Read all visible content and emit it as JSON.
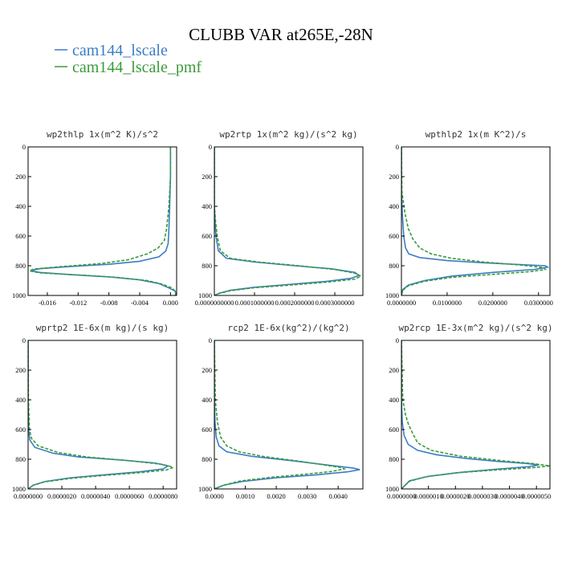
{
  "figure": {
    "title": "CLUBB VAR at265E,-28N",
    "legend": [
      {
        "label": "cam144_lscale",
        "color": "#3b7dc4",
        "dash": "solid"
      },
      {
        "label": "cam144_lscale_pmf",
        "color": "#3a9a3a",
        "dash": "dashed"
      }
    ]
  },
  "chart_data": [
    {
      "type": "line",
      "title": "wp2thlp  1x(m^2 K)/s^2",
      "xlim": [
        -0.0185,
        0.0008
      ],
      "ylim": [
        0,
        1000
      ],
      "y_inverted": true,
      "xticks": [
        -0.016,
        -0.012,
        -0.008,
        -0.004,
        0.0
      ],
      "xtick_labels": [
        "-0.016",
        "-0.012",
        "-0.008",
        "-0.004",
        "0.000"
      ],
      "yticks": [
        0,
        200,
        400,
        600,
        800,
        1000
      ],
      "series": [
        {
          "name": "cam144_lscale",
          "points": [
            [
              0.0,
              0
            ],
            [
              0.0,
              200
            ],
            [
              -0.0001,
              400
            ],
            [
              -0.0002,
              550
            ],
            [
              -0.0003,
              650
            ],
            [
              -0.0006,
              700
            ],
            [
              -0.0015,
              740
            ],
            [
              -0.004,
              770
            ],
            [
              -0.008,
              790
            ],
            [
              -0.013,
              805
            ],
            [
              -0.017,
              820
            ],
            [
              -0.0182,
              832
            ],
            [
              -0.017,
              845
            ],
            [
              -0.013,
              860
            ],
            [
              -0.008,
              875
            ],
            [
              -0.004,
              895
            ],
            [
              -0.0015,
              920
            ],
            [
              -0.0004,
              945
            ],
            [
              0.0006,
              970
            ],
            [
              0.0007,
              990
            ],
            [
              0.0006,
              1000
            ]
          ]
        },
        {
          "name": "cam144_lscale_pmf",
          "points": [
            [
              0.0,
              0
            ],
            [
              0.0,
              200
            ],
            [
              -0.0002,
              400
            ],
            [
              -0.0005,
              550
            ],
            [
              -0.0008,
              630
            ],
            [
              -0.0016,
              680
            ],
            [
              -0.003,
              720
            ],
            [
              -0.0055,
              760
            ],
            [
              -0.009,
              785
            ],
            [
              -0.014,
              805
            ],
            [
              -0.0178,
              822
            ],
            [
              -0.0183,
              835
            ],
            [
              -0.017,
              848
            ],
            [
              -0.012,
              862
            ],
            [
              -0.007,
              878
            ],
            [
              -0.003,
              900
            ],
            [
              -0.001,
              925
            ],
            [
              0.0002,
              950
            ],
            [
              0.0007,
              975
            ],
            [
              0.0007,
              995
            ],
            [
              0.0006,
              1000
            ]
          ]
        }
      ]
    },
    {
      "type": "line",
      "title": "wp2rtp  1x(m^2 kg)/(s^2 kg)",
      "xlim": [
        0.0,
        0.00037
      ],
      "ylim": [
        0,
        1000
      ],
      "y_inverted": true,
      "xticks": [
        0.0,
        0.0001,
        0.0002,
        0.0003
      ],
      "xtick_labels": [
        "0.0000000000",
        "0.0001000000",
        "0.0002000000",
        "0.0003000000"
      ],
      "yticks": [
        0,
        200,
        400,
        600,
        800,
        1000
      ],
      "series": [
        {
          "name": "cam144_lscale",
          "points": [
            [
              0.0,
              0
            ],
            [
              0.0,
              400
            ],
            [
              1.5e-06,
              500
            ],
            [
              4e-06,
              600
            ],
            [
              1e-05,
              700
            ],
            [
              3e-05,
              750
            ],
            [
              0.0001,
              775
            ],
            [
              0.0002,
              800
            ],
            [
              0.00029,
              820
            ],
            [
              0.00035,
              845
            ],
            [
              0.00036,
              865
            ],
            [
              0.00034,
              885
            ],
            [
              0.00028,
              905
            ],
            [
              0.00019,
              925
            ],
            [
              0.0001,
              945
            ],
            [
              4e-05,
              965
            ],
            [
              1.2e-05,
              985
            ],
            [
              0.0,
              1000
            ]
          ]
        },
        {
          "name": "cam144_lscale_pmf",
          "points": [
            [
              0.0,
              0
            ],
            [
              0.0,
              400
            ],
            [
              3e-06,
              500
            ],
            [
              7e-06,
              600
            ],
            [
              1.5e-05,
              700
            ],
            [
              4e-05,
              750
            ],
            [
              0.00011,
              775
            ],
            [
              0.00021,
              800
            ],
            [
              0.0003,
              825
            ],
            [
              0.00035,
              850
            ],
            [
              0.000365,
              870
            ],
            [
              0.00035,
              890
            ],
            [
              0.00029,
              908
            ],
            [
              0.0002,
              928
            ],
            [
              0.0001,
              948
            ],
            [
              4e-05,
              968
            ],
            [
              1e-05,
              988
            ],
            [
              0.0,
              1000
            ]
          ]
        }
      ]
    },
    {
      "type": "line",
      "title": "wpthlp2  1x(m K^2)/s",
      "xlim": [
        0.0,
        0.0325
      ],
      "ylim": [
        0,
        1000
      ],
      "y_inverted": true,
      "xticks": [
        0.0,
        0.01,
        0.02,
        0.03
      ],
      "xtick_labels": [
        "0.0000000",
        "0.0100000",
        "0.0200000",
        "0.0300000"
      ],
      "yticks": [
        0,
        200,
        400,
        600,
        800,
        1000
      ],
      "series": [
        {
          "name": "cam144_lscale",
          "points": [
            [
              0.0,
              0
            ],
            [
              0.0,
              300
            ],
            [
              0.0002,
              450
            ],
            [
              0.0005,
              600
            ],
            [
              0.0009,
              680
            ],
            [
              0.0016,
              720
            ],
            [
              0.004,
              745
            ],
            [
              0.01,
              765
            ],
            [
              0.018,
              780
            ],
            [
              0.026,
              792
            ],
            [
              0.0315,
              800
            ],
            [
              0.032,
              810
            ],
            [
              0.029,
              825
            ],
            [
              0.02,
              845
            ],
            [
              0.011,
              870
            ],
            [
              0.005,
              900
            ],
            [
              0.0015,
              930
            ],
            [
              0.0003,
              960
            ],
            [
              0.0,
              1000
            ]
          ]
        },
        {
          "name": "cam144_lscale_pmf",
          "points": [
            [
              0.0,
              0
            ],
            [
              0.0001,
              300
            ],
            [
              0.0008,
              450
            ],
            [
              0.0015,
              550
            ],
            [
              0.0025,
              620
            ],
            [
              0.004,
              680
            ],
            [
              0.0065,
              720
            ],
            [
              0.011,
              750
            ],
            [
              0.018,
              775
            ],
            [
              0.026,
              795
            ],
            [
              0.031,
              812
            ],
            [
              0.0315,
              825
            ],
            [
              0.028,
              840
            ],
            [
              0.02,
              858
            ],
            [
              0.011,
              878
            ],
            [
              0.005,
              905
            ],
            [
              0.0015,
              935
            ],
            [
              0.0003,
              965
            ],
            [
              0.0,
              1000
            ]
          ]
        }
      ]
    },
    {
      "type": "line",
      "title": "wprtp2  1E-6x(m kg)/(s kg)",
      "xlim": [
        0.0,
        8.8e-06
      ],
      "ylim": [
        0,
        1000
      ],
      "y_inverted": true,
      "xticks": [
        0.0,
        2e-06,
        4e-06,
        6e-06,
        8e-06
      ],
      "xtick_labels": [
        "0.0000000",
        "0.0000020",
        "0.0000040",
        "0.0000060",
        "0.0000080"
      ],
      "yticks": [
        0,
        200,
        400,
        600,
        800,
        1000
      ],
      "series": [
        {
          "name": "cam144_lscale",
          "points": [
            [
              0.0,
              0
            ],
            [
              0.0,
              400
            ],
            [
              3e-08,
              600
            ],
            [
              1e-07,
              670
            ],
            [
              4e-07,
              720
            ],
            [
              1.5e-06,
              760
            ],
            [
              3e-06,
              785
            ],
            [
              5.5e-06,
              805
            ],
            [
              7.5e-06,
              825
            ],
            [
              8.3e-06,
              845
            ],
            [
              8e-06,
              865
            ],
            [
              6.6e-06,
              885
            ],
            [
              4.5e-06,
              905
            ],
            [
              2.5e-06,
              925
            ],
            [
              1e-06,
              950
            ],
            [
              3e-07,
              975
            ],
            [
              0.0,
              1000
            ]
          ]
        },
        {
          "name": "cam144_lscale_pmf",
          "points": [
            [
              0.0,
              0
            ],
            [
              2e-08,
              400
            ],
            [
              8e-08,
              600
            ],
            [
              2e-07,
              660
            ],
            [
              6e-07,
              710
            ],
            [
              1.8e-06,
              755
            ],
            [
              3.5e-06,
              785
            ],
            [
              6e-06,
              810
            ],
            [
              8e-06,
              835
            ],
            [
              8.6e-06,
              855
            ],
            [
              8.2e-06,
              872
            ],
            [
              6.7e-06,
              890
            ],
            [
              4.6e-06,
              908
            ],
            [
              2.6e-06,
              928
            ],
            [
              1e-06,
              952
            ],
            [
              3e-07,
              975
            ],
            [
              0.0,
              1000
            ]
          ]
        }
      ]
    },
    {
      "type": "line",
      "title": "rcp2  1E-6x(kg^2)/(kg^2)",
      "xlim": [
        0.0,
        0.0048
      ],
      "ylim": [
        0,
        1000
      ],
      "y_inverted": true,
      "xticks": [
        0.0,
        0.001,
        0.002,
        0.003,
        0.004
      ],
      "xtick_labels": [
        "0.0000",
        "0.0010",
        "0.0020",
        "0.0030",
        "0.0040"
      ],
      "yticks": [
        0,
        200,
        400,
        600,
        800,
        1000
      ],
      "series": [
        {
          "name": "cam144_lscale",
          "points": [
            [
              0.0,
              0
            ],
            [
              0.0,
              400
            ],
            [
              2e-05,
              550
            ],
            [
              6e-05,
              650
            ],
            [
              0.00015,
              710
            ],
            [
              0.0004,
              750
            ],
            [
              0.0012,
              780
            ],
            [
              0.0025,
              810
            ],
            [
              0.0037,
              840
            ],
            [
              0.0045,
              860
            ],
            [
              0.0047,
              870
            ],
            [
              0.0043,
              885
            ],
            [
              0.0033,
              905
            ],
            [
              0.002,
              925
            ],
            [
              0.0009,
              950
            ],
            [
              0.0003,
              975
            ],
            [
              0.0,
              1000
            ]
          ]
        },
        {
          "name": "cam144_lscale_pmf",
          "points": [
            [
              0.0,
              0
            ],
            [
              3e-05,
              400
            ],
            [
              0.0001,
              550
            ],
            [
              0.0002,
              650
            ],
            [
              0.0004,
              710
            ],
            [
              0.0008,
              750
            ],
            [
              0.0016,
              782
            ],
            [
              0.0027,
              812
            ],
            [
              0.0036,
              840
            ],
            [
              0.0041,
              856
            ],
            [
              0.0042,
              865
            ],
            [
              0.0038,
              882
            ],
            [
              0.0029,
              902
            ],
            [
              0.0018,
              922
            ],
            [
              0.0008,
              948
            ],
            [
              0.0003,
              975
            ],
            [
              0.0,
              1000
            ]
          ]
        }
      ]
    },
    {
      "type": "line",
      "title": "wp2rcp  1E-3x(m^2 kg)/(s^2 kg)",
      "xlim": [
        0.0,
        5.5e-06
      ],
      "ylim": [
        0,
        1000
      ],
      "y_inverted": true,
      "xticks": [
        0.0,
        1e-06,
        2e-06,
        3e-06,
        4e-06,
        5e-06
      ],
      "xtick_labels": [
        "0.0000000",
        "0.0000010",
        "0.0000020",
        "0.0000030",
        "0.0000040",
        "0.0000050"
      ],
      "yticks": [
        0,
        200,
        400,
        600,
        800,
        1000
      ],
      "series": [
        {
          "name": "cam144_lscale",
          "points": [
            [
              0.0,
              0
            ],
            [
              0.0,
              400
            ],
            [
              3e-08,
              550
            ],
            [
              1e-07,
              640
            ],
            [
              2.5e-07,
              700
            ],
            [
              6e-07,
              740
            ],
            [
              1.3e-06,
              770
            ],
            [
              2.4e-06,
              795
            ],
            [
              3.6e-06,
              815
            ],
            [
              4.6e-06,
              828
            ],
            [
              5.1e-06,
              838
            ],
            [
              4.7e-06,
              850
            ],
            [
              3.6e-06,
              866
            ],
            [
              2.2e-06,
              888
            ],
            [
              1e-06,
              915
            ],
            [
              3e-07,
              945
            ],
            [
              0.0,
              1000
            ]
          ]
        },
        {
          "name": "cam144_lscale_pmf",
          "points": [
            [
              0.0,
              0
            ],
            [
              5e-08,
              400
            ],
            [
              1.5e-07,
              500
            ],
            [
              2.5e-07,
              560
            ],
            [
              4e-07,
              620
            ],
            [
              6e-07,
              690
            ],
            [
              1.1e-06,
              740
            ],
            [
              2.2e-06,
              780
            ],
            [
              3.6e-06,
              808
            ],
            [
              4.8e-06,
              828
            ],
            [
              5.5e-06,
              845
            ],
            [
              4.8e-06,
              858
            ],
            [
              3.5e-06,
              872
            ],
            [
              2e-06,
              892
            ],
            [
              9e-07,
              918
            ],
            [
              3e-07,
              948
            ],
            [
              0.0,
              1000
            ]
          ]
        }
      ]
    }
  ]
}
